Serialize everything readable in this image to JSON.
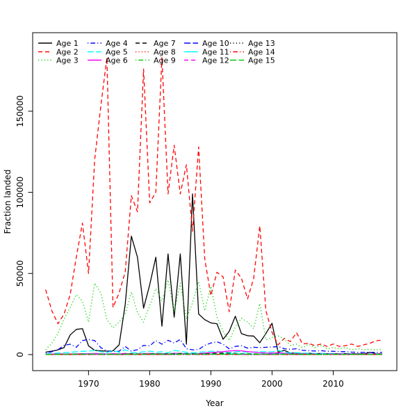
{
  "figure": {
    "background_color": "#ffffff",
    "axis_color": "#000000"
  },
  "chart_data": {
    "type": "line",
    "title": "",
    "xlabel": "Year",
    "ylabel": "Fraction landed",
    "x_ticks": [
      1970,
      1980,
      1990,
      2000,
      2010
    ],
    "y_ticks": [
      0,
      50000,
      100000,
      150000
    ],
    "xlim": [
      1960.87,
      2020.4
    ],
    "ylim": [
      -9900,
      198400
    ],
    "grid": false,
    "legend_position": "top-left-inside",
    "legend_columns": 5,
    "legend_rows": 3,
    "x": [
      1963,
      1964,
      1965,
      1966,
      1967,
      1968,
      1969,
      1970,
      1971,
      1972,
      1973,
      1974,
      1975,
      1976,
      1977,
      1978,
      1979,
      1980,
      1981,
      1982,
      1983,
      1984,
      1985,
      1986,
      1987,
      1988,
      1989,
      1990,
      1991,
      1992,
      1993,
      1994,
      1995,
      1996,
      1997,
      1998,
      1999,
      2000,
      2001,
      2002,
      2003,
      2004,
      2005,
      2006,
      2007,
      2008,
      2009,
      2010,
      2011,
      2012,
      2013,
      2014,
      2015,
      2016,
      2017,
      2018
    ],
    "series": [
      {
        "name": "Age 1",
        "color": "#000000",
        "dash": "solid",
        "values": [
          1500,
          2100,
          2900,
          4300,
          12100,
          15500,
          16000,
          5400,
          2600,
          2300,
          2100,
          2300,
          6000,
          31000,
          73000,
          60000,
          28600,
          43000,
          60000,
          17500,
          62000,
          23000,
          62000,
          6400,
          99000,
          25000,
          21500,
          19500,
          19000,
          9400,
          14300,
          23600,
          12900,
          11600,
          11400,
          7300,
          13000,
          19300,
          1400,
          2600,
          1000,
          800,
          600,
          800,
          500,
          700,
          500,
          600,
          500,
          600,
          500,
          600,
          500,
          1400,
          600,
          400
        ]
      },
      {
        "name": "Age 2",
        "color": "#FF0000",
        "dash": "dashed",
        "values": [
          40000,
          27000,
          19000,
          25000,
          37000,
          60000,
          81000,
          50000,
          120000,
          153000,
          183000,
          29000,
          38000,
          51000,
          98000,
          88000,
          176000,
          93500,
          100000,
          183000,
          99000,
          129000,
          99000,
          117000,
          76000,
          128000,
          59000,
          36400,
          50700,
          47900,
          26400,
          52100,
          47000,
          34300,
          47000,
          79300,
          27000,
          13700,
          6000,
          10000,
          8000,
          13500,
          6500,
          7000,
          5500,
          6500,
          5000,
          6500,
          5000,
          5500,
          6500,
          5000,
          6000,
          7000,
          8500,
          9000
        ]
      },
      {
        "name": "Age 3",
        "color": "#00CD00",
        "dash": "dotted",
        "values": [
          3000,
          7000,
          13000,
          22000,
          29000,
          37000,
          33000,
          20000,
          44000,
          38000,
          21500,
          16400,
          20000,
          25000,
          38600,
          26000,
          20000,
          30000,
          40700,
          33000,
          46000,
          26000,
          44000,
          22000,
          32000,
          45000,
          27000,
          42000,
          23000,
          14300,
          8600,
          17100,
          22400,
          20000,
          16000,
          31400,
          9000,
          10500,
          11500,
          9500,
          5700,
          6400,
          4300,
          6400,
          4300,
          5700,
          3600,
          4300,
          3600,
          4300,
          2900,
          3600,
          2900,
          3200,
          2900,
          3200
        ]
      },
      {
        "name": "Age 4",
        "color": "#0000FF",
        "dash": "dotdash",
        "values": [
          1100,
          1700,
          3000,
          5700,
          6400,
          4500,
          8600,
          9300,
          8600,
          4300,
          2100,
          1700,
          2100,
          5000,
          2100,
          3000,
          5700,
          5300,
          8600,
          6400,
          8800,
          7100,
          9300,
          3600,
          2900,
          3100,
          5700,
          7100,
          7900,
          6400,
          3500,
          5000,
          5500,
          4000,
          4500,
          4300,
          4500,
          4600,
          5000,
          3600,
          3200,
          3600,
          2600,
          2400,
          2200,
          2400,
          2000,
          2000,
          1800,
          1800,
          1500,
          1400,
          1400,
          1300,
          1400,
          1400
        ]
      },
      {
        "name": "Age 5",
        "color": "#00FFFF",
        "dash": "longdash",
        "values": [
          500,
          700,
          900,
          1100,
          1400,
          1700,
          2000,
          2100,
          2600,
          1700,
          1200,
          2500,
          1400,
          2900,
          1400,
          1100,
          1700,
          2100,
          1400,
          1700,
          1200,
          2500,
          2100,
          1400,
          1100,
          1400,
          1700,
          2000,
          2100,
          1500,
          1200,
          1700,
          1900,
          1400,
          1600,
          1700,
          1800,
          1600,
          2600,
          1400,
          1100,
          1200,
          900,
          800,
          700,
          700,
          600,
          600,
          500,
          500,
          450,
          450,
          400,
          400,
          450,
          500
        ]
      },
      {
        "name": "Age 6",
        "color": "#FF00FF",
        "dash": "solid",
        "values": [
          200,
          250,
          300,
          350,
          400,
          450,
          500,
          550,
          700,
          500,
          400,
          600,
          450,
          700,
          450,
          400,
          500,
          700,
          500,
          600,
          450,
          800,
          700,
          500,
          450,
          600,
          900,
          1200,
          1500,
          1800,
          2200,
          2500,
          2300,
          1800,
          1500,
          1200,
          1000,
          900,
          1100,
          800,
          600,
          500,
          450,
          400,
          350,
          350,
          300,
          300,
          280,
          280,
          260,
          260,
          250,
          250,
          260,
          280
        ]
      },
      {
        "name": "Age 7",
        "color": "#000000",
        "dash": "dashed",
        "values": [
          150,
          180,
          200,
          230,
          260,
          300,
          330,
          300,
          260,
          230,
          200,
          230,
          260,
          400,
          500,
          450,
          400,
          450,
          550,
          450,
          600,
          500,
          700,
          600,
          500,
          450,
          600,
          700,
          800,
          900,
          800,
          700,
          600,
          550,
          500,
          450,
          400,
          380,
          500,
          350,
          300,
          280,
          260,
          250,
          240,
          230,
          220,
          210,
          200,
          200,
          190,
          190,
          180,
          180,
          190,
          200
        ]
      },
      {
        "name": "Age 8",
        "color": "#FF0000",
        "dash": "dotted",
        "values": [
          100,
          120,
          140,
          160,
          180,
          200,
          220,
          240,
          260,
          240,
          220,
          200,
          180,
          220,
          260,
          240,
          220,
          260,
          300,
          280,
          320,
          300,
          350,
          320,
          300,
          280,
          320,
          360,
          400,
          380,
          360,
          340,
          320,
          300,
          280,
          260,
          240,
          220,
          260,
          220,
          200,
          190,
          180,
          170,
          160,
          150,
          140,
          130,
          120,
          120,
          110,
          110,
          100,
          100,
          110,
          120
        ]
      },
      {
        "name": "Age 9",
        "color": "#00CD00",
        "dash": "dotdash",
        "values": [
          80,
          95,
          110,
          125,
          140,
          155,
          170,
          185,
          200,
          185,
          170,
          155,
          140,
          170,
          200,
          185,
          170,
          200,
          230,
          215,
          245,
          230,
          270,
          245,
          230,
          215,
          245,
          275,
          300,
          290,
          275,
          260,
          245,
          230,
          215,
          200,
          185,
          170,
          200,
          170,
          155,
          145,
          140,
          130,
          125,
          115,
          110,
          105,
          100,
          100,
          95,
          95,
          90,
          90,
          95,
          100
        ]
      },
      {
        "name": "Age 10",
        "color": "#0000FF",
        "dash": "longdash",
        "values": [
          60,
          70,
          80,
          90,
          100,
          110,
          120,
          130,
          140,
          130,
          120,
          110,
          100,
          120,
          140,
          130,
          120,
          140,
          160,
          150,
          170,
          160,
          190,
          170,
          160,
          150,
          170,
          190,
          210,
          200,
          190,
          180,
          170,
          160,
          150,
          140,
          130,
          120,
          140,
          120,
          110,
          100,
          95,
          90,
          85,
          80,
          75,
          70,
          70,
          65,
          65,
          60,
          60,
          60,
          65,
          70
        ]
      },
      {
        "name": "Age 11",
        "color": "#00FFFF",
        "dash": "solid",
        "values": [
          100,
          115,
          130,
          145,
          160,
          175,
          190,
          205,
          220,
          205,
          190,
          175,
          160,
          190,
          220,
          205,
          190,
          220,
          250,
          235,
          265,
          250,
          290,
          265,
          250,
          235,
          265,
          295,
          330,
          380,
          420,
          450,
          420,
          380,
          340,
          300,
          280,
          260,
          300,
          260,
          230,
          210,
          200,
          190,
          180,
          170,
          160,
          150,
          150,
          140,
          140,
          130,
          130,
          130,
          140,
          150
        ]
      },
      {
        "name": "Age 12",
        "color": "#FF00FF",
        "dash": "dashed",
        "values": [
          50,
          58,
          66,
          74,
          82,
          90,
          98,
          106,
          114,
          106,
          98,
          90,
          82,
          98,
          114,
          106,
          98,
          114,
          130,
          122,
          138,
          130,
          155,
          138,
          130,
          122,
          138,
          155,
          170,
          165,
          155,
          146,
          138,
          130,
          122,
          114,
          106,
          98,
          114,
          98,
          90,
          85,
          82,
          76,
          73,
          68,
          65,
          62,
          60,
          58,
          56,
          55,
          54,
          53,
          55,
          58
        ]
      },
      {
        "name": "Age 13",
        "color": "#000000",
        "dash": "dotted",
        "values": [
          40,
          46,
          52,
          58,
          64,
          70,
          76,
          82,
          88,
          82,
          76,
          70,
          64,
          76,
          88,
          82,
          76,
          88,
          100,
          94,
          106,
          100,
          118,
          106,
          100,
          94,
          106,
          118,
          130,
          125,
          118,
          112,
          106,
          100,
          94,
          88,
          82,
          76,
          88,
          76,
          70,
          66,
          64,
          60,
          57,
          54,
          51,
          49,
          47,
          46,
          45,
          44,
          43,
          43,
          44,
          46
        ]
      },
      {
        "name": "Age 14",
        "color": "#FF0000",
        "dash": "dotdash",
        "values": [
          30,
          35,
          40,
          44,
          48,
          53,
          57,
          62,
          66,
          62,
          57,
          53,
          48,
          57,
          66,
          62,
          57,
          66,
          75,
          71,
          80,
          75,
          89,
          80,
          75,
          71,
          80,
          89,
          98,
          94,
          89,
          84,
          80,
          75,
          71,
          66,
          62,
          57,
          66,
          57,
          53,
          50,
          48,
          45,
          43,
          41,
          39,
          37,
          36,
          35,
          34,
          33,
          33,
          32,
          33,
          35
        ]
      },
      {
        "name": "Age 15",
        "color": "#00CD00",
        "dash": "longdash",
        "values": [
          120,
          130,
          140,
          150,
          160,
          170,
          180,
          190,
          200,
          190,
          180,
          170,
          160,
          180,
          200,
          190,
          180,
          200,
          220,
          210,
          230,
          220,
          250,
          230,
          220,
          210,
          230,
          250,
          270,
          260,
          250,
          240,
          230,
          220,
          210,
          200,
          190,
          180,
          200,
          180,
          170,
          160,
          155,
          150,
          145,
          140,
          135,
          130,
          128,
          126,
          124,
          122,
          120,
          120,
          122,
          126
        ]
      }
    ]
  }
}
